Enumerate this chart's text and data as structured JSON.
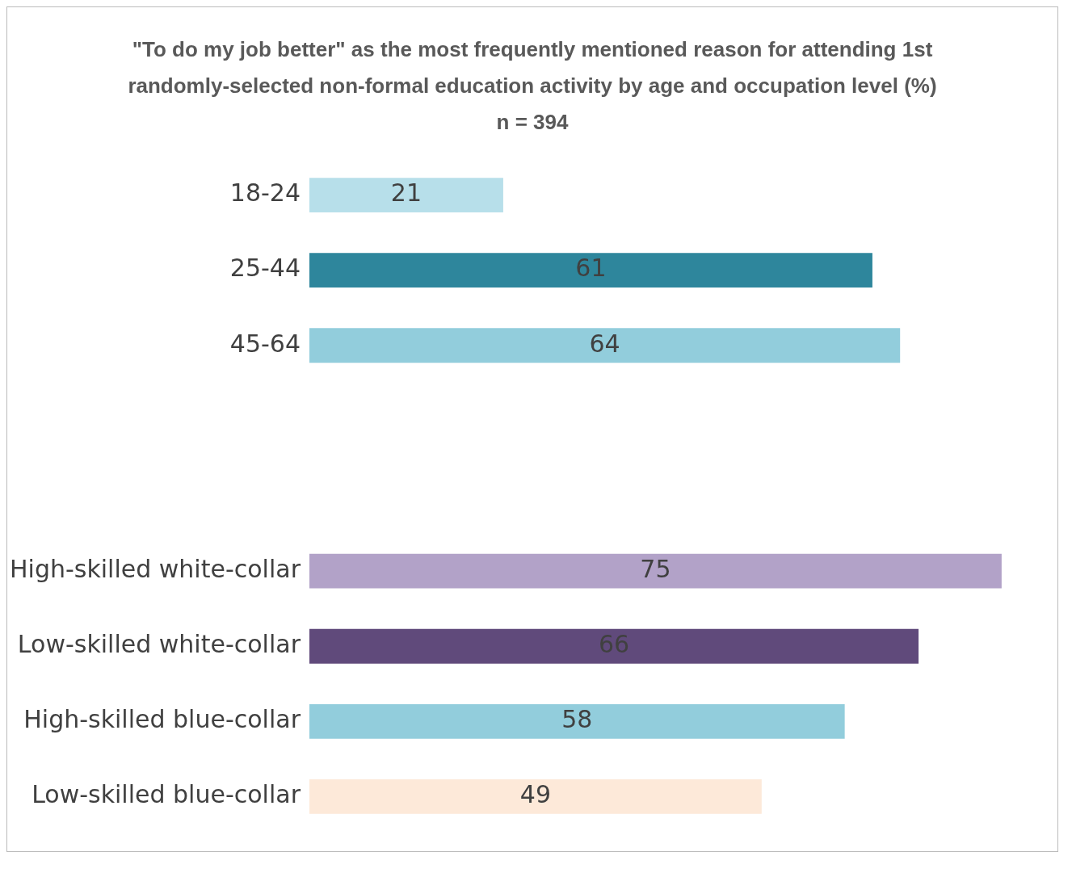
{
  "chart_data": {
    "type": "bar",
    "orientation": "horizontal",
    "title": "\"To do my job better\" as the most frequently mentioned reason for attending 1st randomly-selected non-formal education activity by age and occupation level (%)",
    "subtitle": "n = 394",
    "categories": [
      "18-24",
      "25-44",
      "45-64",
      null,
      null,
      "High-skilled white-collar",
      "Low-skilled white-collar",
      "High-skilled blue-collar",
      "Low-skilled blue-collar"
    ],
    "values": [
      21,
      61,
      64,
      null,
      null,
      75,
      66,
      58,
      49
    ],
    "colors": [
      "#b7dfea",
      "#2e869c",
      "#92cddc",
      "#ffffff",
      "#ffffff",
      "#b2a2c8",
      "#604a7b",
      "#92cddc",
      "#fde9d9"
    ],
    "data_labels": true
  }
}
